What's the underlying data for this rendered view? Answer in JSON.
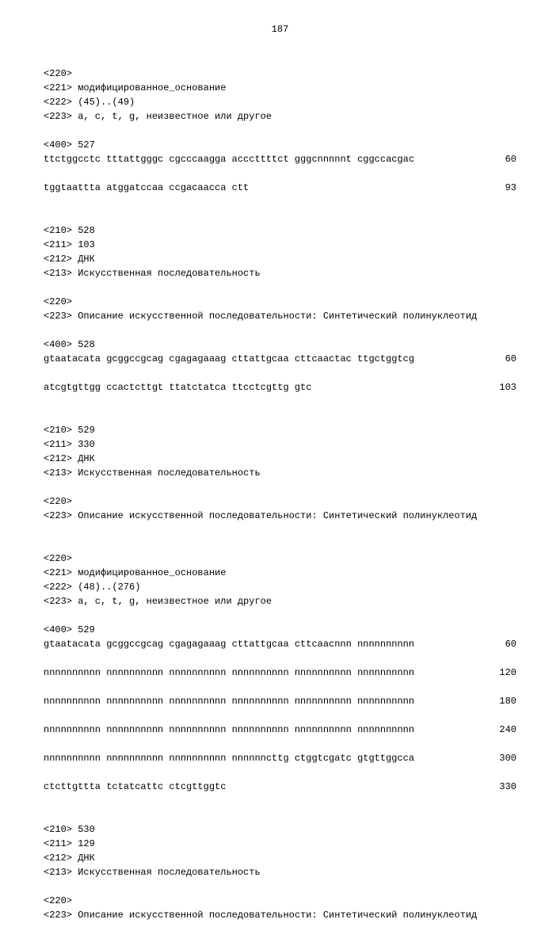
{
  "page_number": "187",
  "blocks": [
    {
      "type": "line",
      "text": "<220>"
    },
    {
      "type": "line",
      "text": "<221> модифицированное_основание"
    },
    {
      "type": "line",
      "text": "<222> (45)..(49)"
    },
    {
      "type": "line",
      "text": "<223> a, c, t, g, неизвестное или другое"
    },
    {
      "type": "blank"
    },
    {
      "type": "line",
      "text": "<400> 527"
    },
    {
      "type": "seq",
      "text": "ttctggcctc tttattgggc cgcccaagga acccttttct gggcnnnnnt cggccacgac",
      "num": "60"
    },
    {
      "type": "blank"
    },
    {
      "type": "seq",
      "text": "tggtaattta atggatccaa ccgacaacca ctt",
      "num": "93"
    },
    {
      "type": "blank"
    },
    {
      "type": "blank"
    },
    {
      "type": "line",
      "text": "<210> 528"
    },
    {
      "type": "line",
      "text": "<211> 103"
    },
    {
      "type": "line",
      "text": "<212> ДНК"
    },
    {
      "type": "line",
      "text": "<213> Искусственная последовательность"
    },
    {
      "type": "blank"
    },
    {
      "type": "line",
      "text": "<220>"
    },
    {
      "type": "line",
      "text": "<223> Описание искусственной последовательности: Синтетический полинуклеотид"
    },
    {
      "type": "blank"
    },
    {
      "type": "line",
      "text": "<400> 528"
    },
    {
      "type": "seq",
      "text": "gtaatacata gcggccgcag cgagagaaag cttattgcaa cttcaactac ttgctggtcg",
      "num": "60"
    },
    {
      "type": "blank"
    },
    {
      "type": "seq",
      "text": "atcgtgttgg ccactcttgt ttatctatca ttcctcgttg gtc",
      "num": "103"
    },
    {
      "type": "blank"
    },
    {
      "type": "blank"
    },
    {
      "type": "line",
      "text": "<210> 529"
    },
    {
      "type": "line",
      "text": "<211> 330"
    },
    {
      "type": "line",
      "text": "<212> ДНК"
    },
    {
      "type": "line",
      "text": "<213> Искусственная последовательность"
    },
    {
      "type": "blank"
    },
    {
      "type": "line",
      "text": "<220>"
    },
    {
      "type": "line",
      "text": "<223> Описание искусственной последовательности: Синтетический полинуклеотид"
    },
    {
      "type": "blank"
    },
    {
      "type": "blank"
    },
    {
      "type": "line",
      "text": "<220>"
    },
    {
      "type": "line",
      "text": "<221> модифицированное_основание"
    },
    {
      "type": "line",
      "text": "<222> (48)..(276)"
    },
    {
      "type": "line",
      "text": "<223> a, c, t, g, неизвестное или другое"
    },
    {
      "type": "blank"
    },
    {
      "type": "line",
      "text": "<400> 529"
    },
    {
      "type": "seq",
      "text": "gtaatacata gcggccgcag cgagagaaag cttattgcaa cttcaacnnn nnnnnnnnnn",
      "num": "60"
    },
    {
      "type": "blank"
    },
    {
      "type": "seq",
      "text": "nnnnnnnnnn nnnnnnnnnn nnnnnnnnnn nnnnnnnnnn nnnnnnnnnn nnnnnnnnnn",
      "num": "120"
    },
    {
      "type": "blank"
    },
    {
      "type": "seq",
      "text": "nnnnnnnnnn nnnnnnnnnn nnnnnnnnnn nnnnnnnnnn nnnnnnnnnn nnnnnnnnnn",
      "num": "180"
    },
    {
      "type": "blank"
    },
    {
      "type": "seq",
      "text": "nnnnnnnnnn nnnnnnnnnn nnnnnnnnnn nnnnnnnnnn nnnnnnnnnn nnnnnnnnnn",
      "num": "240"
    },
    {
      "type": "blank"
    },
    {
      "type": "seq",
      "text": "nnnnnnnnnn nnnnnnnnnn nnnnnnnnnn nnnnnncttg ctggtcgatc gtgttggcca",
      "num": "300"
    },
    {
      "type": "blank"
    },
    {
      "type": "seq",
      "text": "ctcttgttta tctatcattc ctcgttggtc",
      "num": "330"
    },
    {
      "type": "blank"
    },
    {
      "type": "blank"
    },
    {
      "type": "line",
      "text": "<210> 530"
    },
    {
      "type": "line",
      "text": "<211> 129"
    },
    {
      "type": "line",
      "text": "<212> ДНК"
    },
    {
      "type": "line",
      "text": "<213> Искусственная последовательность"
    },
    {
      "type": "blank"
    },
    {
      "type": "line",
      "text": "<220>"
    },
    {
      "type": "line",
      "text": "<223> Описание искусственной последовательности: Синтетический полинуклеотид"
    }
  ]
}
